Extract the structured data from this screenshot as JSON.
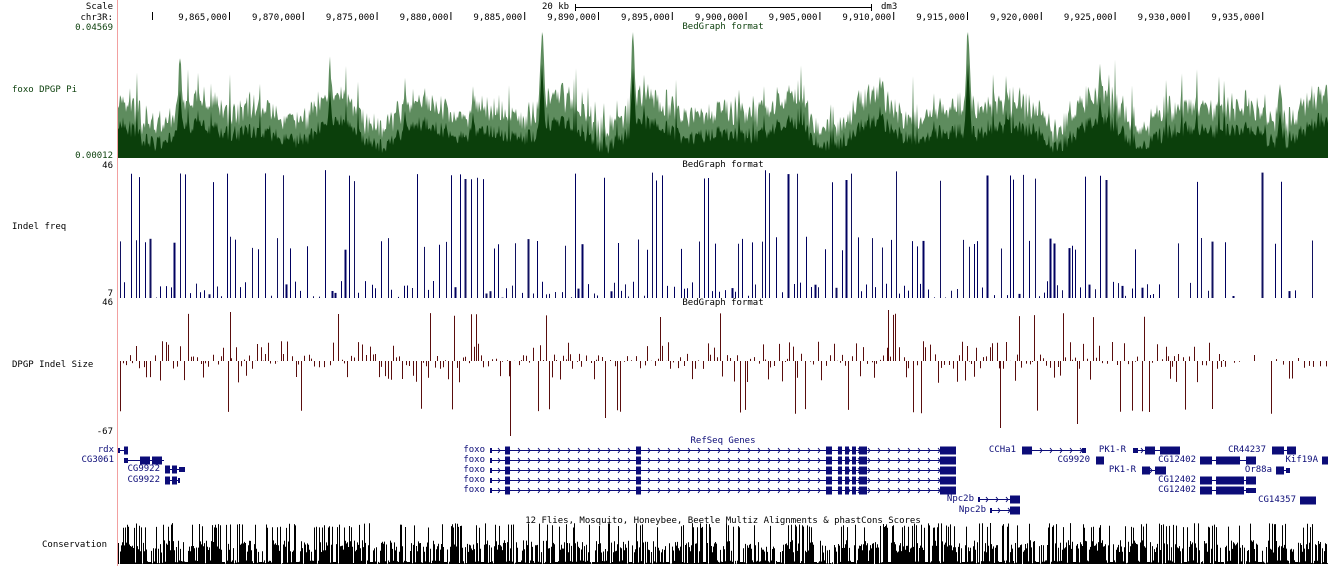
{
  "ruler": {
    "scale_label": "Scale",
    "scale_bar_text": "20 kb",
    "assembly": "dm3",
    "chrom_label": "chr3R:",
    "ticks": [
      "9,865,000",
      "9,870,000",
      "9,875,000",
      "9,880,000",
      "9,885,000",
      "9,890,000",
      "9,895,000",
      "9,900,000",
      "9,905,000",
      "9,910,000",
      "9,915,000",
      "9,920,000",
      "9,925,000",
      "9,930,000",
      "9,935,000"
    ]
  },
  "tracks": {
    "pi": {
      "name": "foxo DPGP Pi",
      "title": "BedGraph format",
      "max": "0.04569",
      "min": "0.00012",
      "colors": {
        "fg": "#0b3f0b",
        "bg": "#5e8c5e"
      }
    },
    "indel_freq": {
      "name": "Indel freq",
      "title": "BedGraph format",
      "max": "46",
      "min": "7",
      "color": "#000060"
    },
    "indel_size": {
      "name": "DPGP Indel Size",
      "title": "BedGraph format",
      "max": "46",
      "min": "-67",
      "color": "#5a0d0d"
    },
    "refseq": {
      "title": "RefSeq Genes",
      "color": "#0c0c78",
      "genes": [
        "rdx",
        "CG3061",
        "CG9922",
        "CG9922",
        "foxo",
        "foxo",
        "foxo",
        "foxo",
        "foxo",
        "CCHa1",
        "CG9920",
        "PK1-R",
        "PK1-R",
        "CG12402",
        "CG12402",
        "CG12402",
        "CR44237",
        "Kif19A",
        "Or88a",
        "Npc2b",
        "Npc2b",
        "CG14357"
      ]
    },
    "conservation": {
      "name": "Conservation",
      "title": "12 Flies, Mosquito, Honeybee, Beetle Multiz Alignments & phastCons Scores",
      "color": "#000000"
    }
  }
}
